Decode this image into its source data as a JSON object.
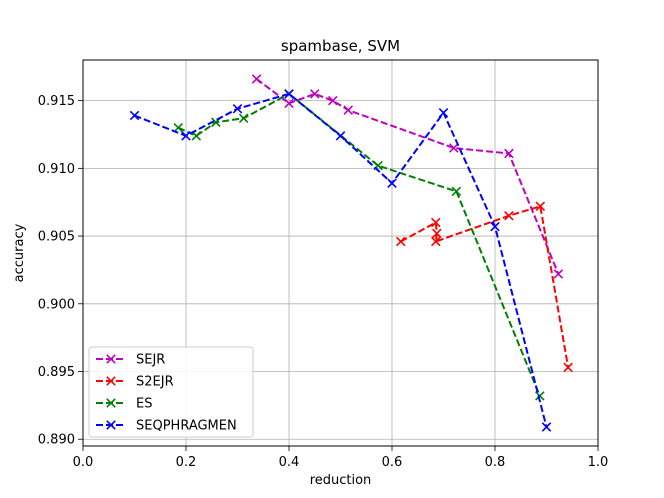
{
  "chart_data": {
    "type": "line",
    "title": "spambase, SVM",
    "xlabel": "reduction",
    "ylabel": "accuracy",
    "xlim": [
      0.0,
      1.0
    ],
    "ylim": [
      0.8895,
      0.918
    ],
    "xticks": [
      0.0,
      0.2,
      0.4,
      0.6,
      0.8,
      1.0
    ],
    "xtick_labels": [
      "0.0",
      "0.2",
      "0.4",
      "0.6",
      "0.8",
      "1.0"
    ],
    "yticks": [
      0.89,
      0.895,
      0.9,
      0.905,
      0.91,
      0.915
    ],
    "ytick_labels": [
      "0.890",
      "0.895",
      "0.900",
      "0.905",
      "0.910",
      "0.915"
    ],
    "grid": true,
    "legend_position": "lower-left",
    "marker": "x",
    "line_style": "dashed",
    "series": [
      {
        "name": "SEJR",
        "color": "#bf00bf",
        "x": [
          0.337,
          0.4,
          0.45,
          0.485,
          0.515,
          0.72,
          0.827,
          0.923
        ],
        "y": [
          0.9166,
          0.9148,
          0.9155,
          0.915,
          0.9143,
          0.9115,
          0.9111,
          0.9022
        ]
      },
      {
        "name": "S2EJR",
        "color": "#ff0000",
        "x": [
          0.617,
          0.685,
          0.687,
          0.685,
          0.827,
          0.888,
          0.942
        ],
        "y": [
          0.9046,
          0.906,
          0.9052,
          0.9046,
          0.9065,
          0.9072,
          0.8953
        ]
      },
      {
        "name": "ES",
        "color": "#008000",
        "x": [
          0.185,
          0.22,
          0.258,
          0.312,
          0.4,
          0.573,
          0.725,
          0.887
        ],
        "y": [
          0.913,
          0.9124,
          0.9134,
          0.9137,
          0.9155,
          0.9102,
          0.9083,
          0.8932
        ]
      },
      {
        "name": "SEQPHRAGMEN",
        "color": "#0000ff",
        "x": [
          0.1,
          0.2,
          0.3,
          0.4,
          0.5,
          0.6,
          0.7,
          0.8,
          0.9
        ],
        "y": [
          0.9139,
          0.9124,
          0.9144,
          0.9155,
          0.9124,
          0.9089,
          0.9141,
          0.9057,
          0.8909
        ]
      }
    ]
  }
}
